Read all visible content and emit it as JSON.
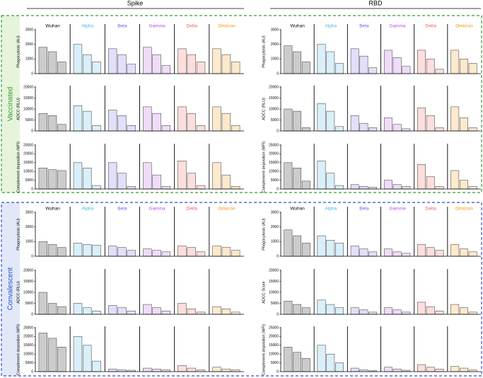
{
  "columns": [
    "Spike",
    "RBD"
  ],
  "groups": [
    "Vaccinated",
    "Convalescent"
  ],
  "variants": [
    {
      "name": "Wuhan",
      "color": "#000000"
    },
    {
      "name": "Alpha",
      "color": "#3fb6e8"
    },
    {
      "name": "Beta",
      "color": "#6a5ee8"
    },
    {
      "name": "Gamma",
      "color": "#b24fe0"
    },
    {
      "name": "Delta",
      "color": "#ee5a50"
    },
    {
      "name": "Omicron",
      "color": "#f39200"
    }
  ],
  "chart_data": [
    {
      "type": "bar",
      "ylabel": "Phagocytosis (AU)",
      "ylim": [
        0,
        3000
      ],
      "yticks": [
        0,
        1000,
        2000,
        3000
      ],
      "values": [
        [
          1800,
          1500,
          800
        ],
        [
          2000,
          1300,
          800
        ],
        [
          1700,
          1300,
          650
        ],
        [
          1800,
          1300,
          550
        ],
        [
          1700,
          1300,
          800
        ],
        [
          1700,
          1300,
          800
        ]
      ]
    },
    {
      "type": "bar",
      "ylabel": "Phagocytosis (AU)",
      "ylim": [
        0,
        3000
      ],
      "yticks": [
        0,
        1000,
        2000,
        3000
      ],
      "values": [
        [
          1900,
          1500,
          800
        ],
        [
          2000,
          1500,
          700
        ],
        [
          1700,
          1200,
          400
        ],
        [
          1600,
          1100,
          500
        ],
        [
          1600,
          1000,
          300
        ],
        [
          1600,
          1000,
          700
        ]
      ]
    },
    {
      "type": "bar",
      "ylabel": "ADCC (RLU)",
      "ylim": [
        0,
        20000
      ],
      "yticks": [
        0,
        5000,
        10000,
        15000,
        20000
      ],
      "values": [
        [
          8000,
          7000,
          3000
        ],
        [
          11500,
          9000,
          2500
        ],
        [
          9500,
          7000,
          2500
        ],
        [
          11000,
          8000,
          2500
        ],
        [
          11000,
          8000,
          2500
        ],
        [
          11000,
          8000,
          2500
        ]
      ]
    },
    {
      "type": "bar",
      "ylabel": "ADCC (RLU)",
      "ylim": [
        0,
        20000
      ],
      "yticks": [
        0,
        5000,
        10000,
        15000,
        20000
      ],
      "values": [
        [
          10000,
          9000,
          1500
        ],
        [
          12500,
          9000,
          2000
        ],
        [
          7000,
          3500,
          1500
        ],
        [
          6000,
          3000,
          1000
        ],
        [
          10500,
          7000,
          1500
        ],
        [
          11000,
          6000,
          1500
        ]
      ]
    },
    {
      "type": "bar",
      "ylabel": "Complement deposition (MFI)",
      "ylim": [
        0,
        25000
      ],
      "yticks": [
        0,
        5000,
        10000,
        15000,
        20000,
        25000
      ],
      "values": [
        [
          12000,
          11000,
          10500
        ],
        [
          15000,
          12000,
          2000
        ],
        [
          15000,
          9000,
          1500
        ],
        [
          15000,
          8000,
          1500
        ],
        [
          16000,
          9000,
          2000
        ],
        [
          15000,
          8000,
          1500
        ]
      ]
    },
    {
      "type": "bar",
      "ylabel": "Complement deposition (MFI)",
      "ylim": [
        0,
        25000
      ],
      "yticks": [
        0,
        5000,
        10000,
        15000,
        20000,
        25000
      ],
      "values": [
        [
          15000,
          12000,
          4500
        ],
        [
          16000,
          9000,
          2000
        ],
        [
          2500,
          1500,
          1000
        ],
        [
          5000,
          2500,
          1500
        ],
        [
          14000,
          7000,
          1500
        ],
        [
          10500,
          5000,
          1500
        ]
      ]
    },
    {
      "type": "bar",
      "ylabel": "Phagocytosis (AU)",
      "ylim": [
        0,
        3000
      ],
      "yticks": [
        0,
        1000,
        2000,
        3000
      ],
      "values": [
        [
          1000,
          800,
          600
        ],
        [
          900,
          800,
          750
        ],
        [
          700,
          600,
          400
        ],
        [
          500,
          400,
          300
        ],
        [
          700,
          600,
          300
        ],
        [
          700,
          600,
          400
        ]
      ]
    },
    {
      "type": "bar",
      "ylabel": "Phagocytosis (AU)",
      "ylim": [
        0,
        3000
      ],
      "yticks": [
        0,
        1000,
        2000,
        3000
      ],
      "values": [
        [
          1800,
          1400,
          900
        ],
        [
          1400,
          1100,
          900
        ],
        [
          700,
          500,
          300
        ],
        [
          500,
          300,
          200
        ],
        [
          800,
          600,
          400
        ],
        [
          800,
          500,
          300
        ]
      ]
    },
    {
      "type": "bar",
      "ylabel": "ADCC (RLU)",
      "ylim": [
        0,
        20000
      ],
      "yticks": [
        0,
        5000,
        10000,
        15000,
        20000
      ],
      "values": [
        [
          10000,
          5000,
          3500
        ],
        [
          5000,
          3000,
          1500
        ],
        [
          4000,
          3000,
          1500
        ],
        [
          4500,
          3000,
          1500
        ],
        [
          5000,
          2500,
          1000
        ],
        [
          3500,
          2500,
          1000
        ]
      ]
    },
    {
      "type": "bar",
      "ylabel": "ADCC Score",
      "ylim": [
        0,
        20000
      ],
      "yticks": [
        0,
        5000,
        10000,
        15000,
        20000
      ],
      "values": [
        [
          6000,
          4500,
          3000
        ],
        [
          6500,
          4500,
          3000
        ],
        [
          3000,
          2000,
          1000
        ],
        [
          3000,
          2000,
          1000
        ],
        [
          5500,
          3500,
          1500
        ],
        [
          4500,
          3000,
          1000
        ]
      ]
    },
    {
      "type": "bar",
      "ylabel": "Complement deposition (MFI)",
      "ylim": [
        0,
        25000
      ],
      "yticks": [
        0,
        5000,
        10000,
        15000,
        20000,
        25000
      ],
      "values": [
        [
          22000,
          19000,
          14000
        ],
        [
          20000,
          15000,
          6000
        ],
        [
          1500,
          1000,
          800
        ],
        [
          2000,
          1500,
          1000
        ],
        [
          3500,
          2000,
          1000
        ],
        [
          2500,
          1500,
          1000
        ]
      ]
    },
    {
      "type": "bar",
      "ylabel": "Complement deposition (MFI)",
      "ylim": [
        0,
        25000
      ],
      "yticks": [
        0,
        5000,
        10000,
        15000,
        20000,
        25000
      ],
      "values": [
        [
          14000,
          11000,
          7500
        ],
        [
          15000,
          10000,
          5000
        ],
        [
          2000,
          1000,
          500
        ],
        [
          2500,
          1500,
          800
        ],
        [
          4000,
          2500,
          1500
        ],
        [
          3000,
          2000,
          1000
        ]
      ]
    }
  ]
}
